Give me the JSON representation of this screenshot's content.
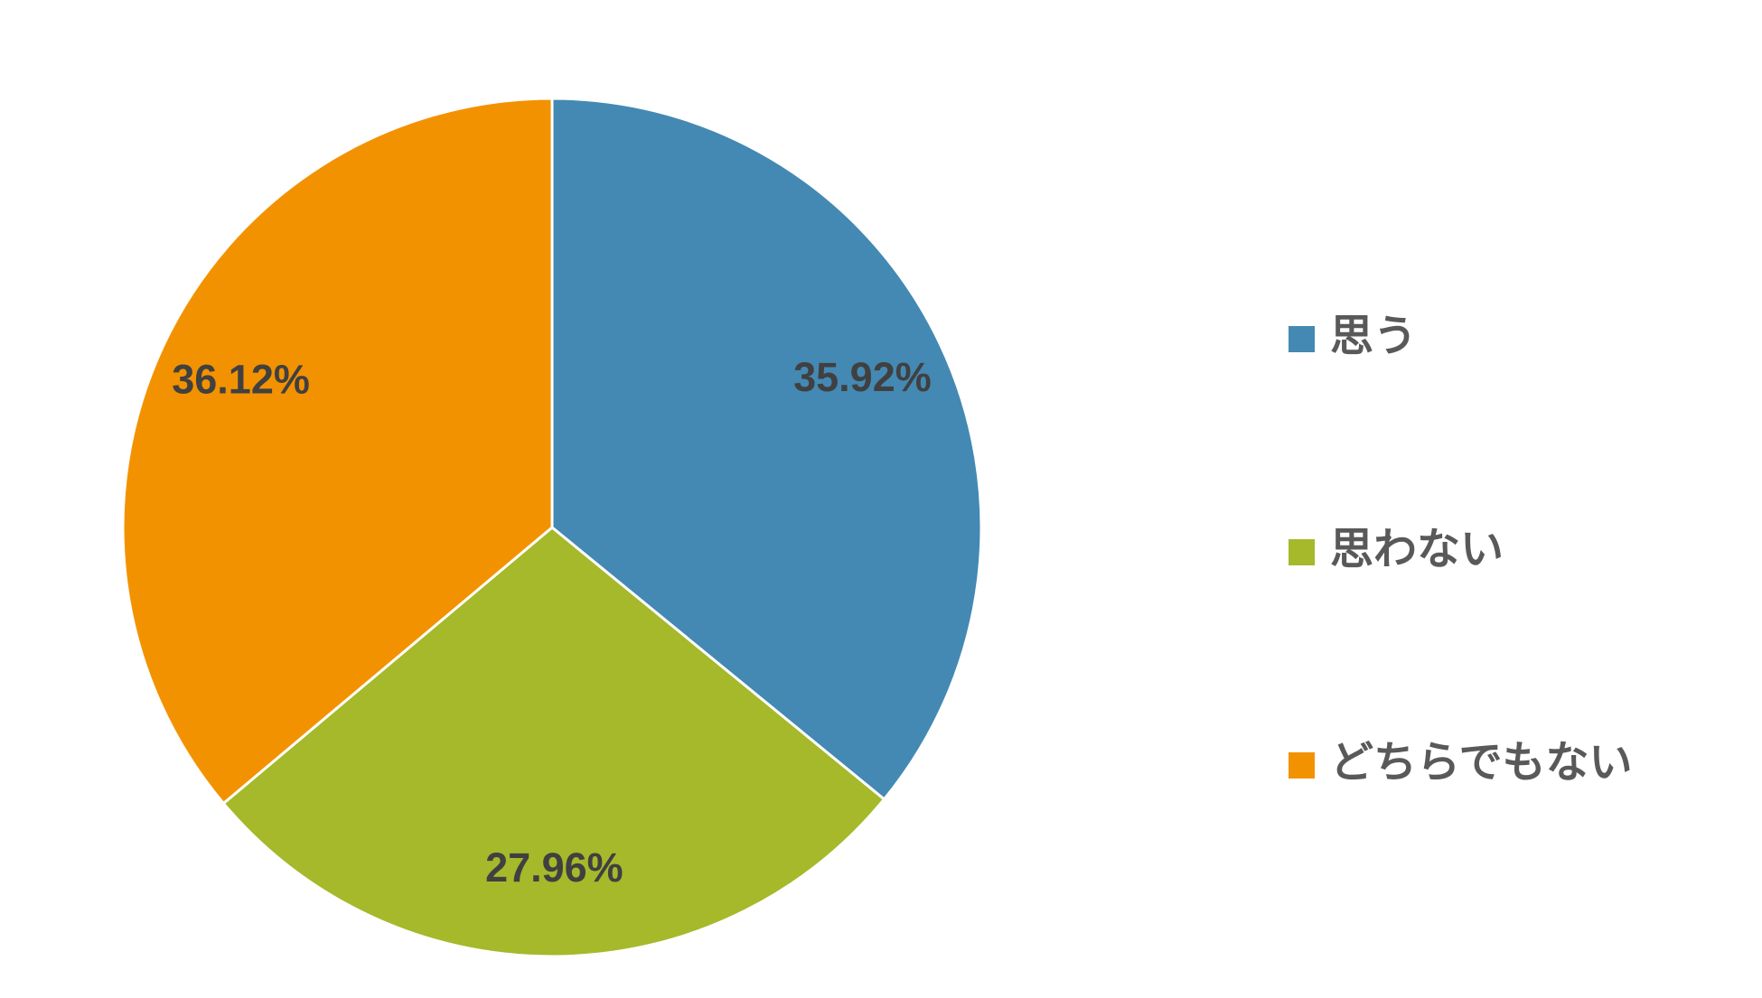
{
  "chart_data": {
    "type": "pie",
    "categories": [
      "思う",
      "思わない",
      "どちらでもない"
    ],
    "values": [
      35.92,
      27.96,
      36.12
    ],
    "value_labels": [
      "35.92%",
      "27.96%",
      "36.12%"
    ],
    "colors": [
      "#4389b3",
      "#a5b92a",
      "#f39200"
    ],
    "legend": "right"
  }
}
